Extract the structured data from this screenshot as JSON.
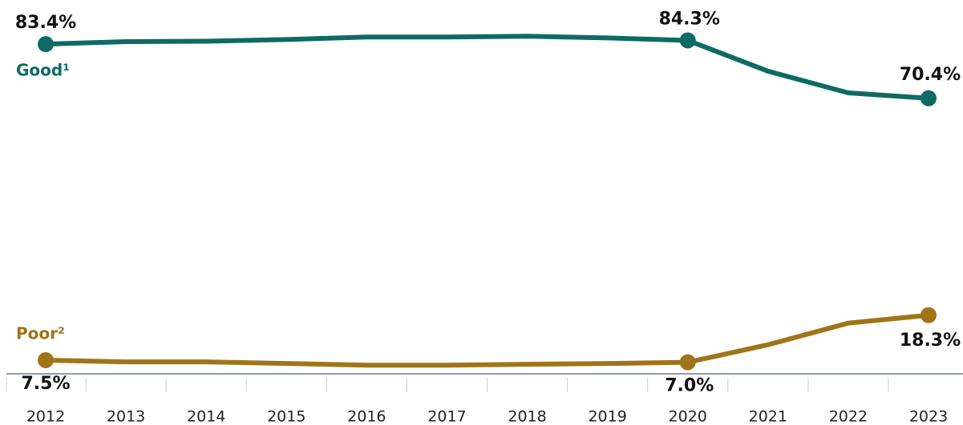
{
  "chart_data": {
    "type": "line",
    "categories": [
      "2012",
      "2013",
      "2014",
      "2015",
      "2016",
      "2017",
      "2018",
      "2019",
      "2020",
      "2021",
      "2022",
      "2023"
    ],
    "series": [
      {
        "name": "Good¹",
        "color": "#0e6b63",
        "values": [
          83.4,
          84.0,
          84.1,
          84.5,
          85.1,
          85.1,
          85.3,
          84.9,
          84.3,
          76.9,
          71.7,
          70.4
        ],
        "value_labels": [
          "83.4%",
          null,
          null,
          null,
          null,
          null,
          null,
          null,
          "84.3%",
          null,
          null,
          "70.4%"
        ]
      },
      {
        "name": "Poor²",
        "color": "#a07418",
        "values": [
          7.5,
          7.1,
          7.1,
          6.7,
          6.3,
          6.3,
          6.5,
          6.7,
          7.0,
          11.2,
          16.4,
          18.3
        ],
        "value_labels": [
          "7.5%",
          null,
          null,
          null,
          null,
          null,
          null,
          null,
          "7.0%",
          null,
          null,
          "18.3%"
        ]
      }
    ],
    "ylim": [
      0,
      94
    ]
  }
}
